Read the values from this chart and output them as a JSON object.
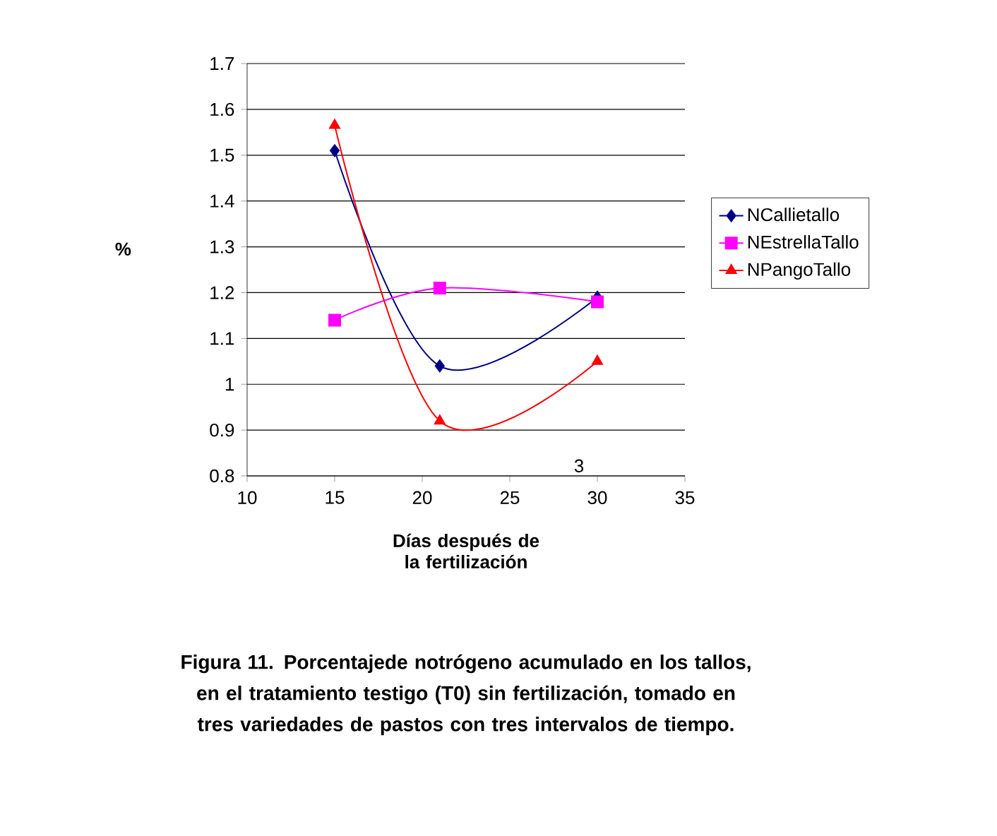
{
  "chart_data": {
    "type": "line",
    "xlabel": "Días después de la fertilización",
    "ylabel": "%",
    "x": [
      15,
      21,
      30
    ],
    "series": [
      {
        "name": "NCallietallo",
        "color": "#000080",
        "marker": "diamond",
        "values": [
          1.51,
          1.04,
          1.19
        ]
      },
      {
        "name": "NEstrellaTallo",
        "color": "#ff00ff",
        "marker": "square",
        "values": [
          1.14,
          1.21,
          1.18
        ]
      },
      {
        "name": "NPangoTallo",
        "color": "#ff0000",
        "marker": "triangle",
        "values": [
          1.565,
          0.92,
          1.05
        ]
      }
    ],
    "xlim": [
      10,
      35
    ],
    "xticks": [
      10,
      15,
      20,
      25,
      30,
      35
    ],
    "ylim": [
      0.8,
      1.7
    ],
    "yticks": [
      0.8,
      0.9,
      1,
      1.1,
      1.2,
      1.3,
      1.4,
      1.5,
      1.6,
      1.7
    ],
    "grid": "y",
    "legend": "right",
    "annotations": [
      "3",
      "Figura 11. Porcentajede notrógeno acumulado en los tallos, en el tratamiento testigo (T0) sin fertilización, tomado en tres variedades de pastos con tres intervalos de tiempo."
    ]
  }
}
